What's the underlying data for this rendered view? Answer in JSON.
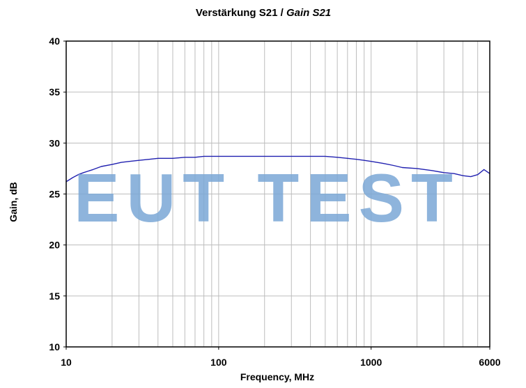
{
  "chart_data": {
    "type": "line",
    "title_part1": "Verstärkung S21 / ",
    "title_part2": "Gain S21",
    "xlabel": "Frequency, MHz",
    "ylabel": "Gain, dB",
    "x_scale": "log",
    "xlim": [
      10,
      6000
    ],
    "ylim": [
      10,
      40
    ],
    "x_ticks": [
      {
        "value": 10,
        "label": "10"
      },
      {
        "value": 100,
        "label": "100"
      },
      {
        "value": 1000,
        "label": "1000"
      },
      {
        "value": 6000,
        "label": "6000"
      }
    ],
    "y_ticks": [
      {
        "value": 10,
        "label": "10"
      },
      {
        "value": 15,
        "label": "15"
      },
      {
        "value": 20,
        "label": "20"
      },
      {
        "value": 25,
        "label": "25"
      },
      {
        "value": 30,
        "label": "30"
      },
      {
        "value": 35,
        "label": "35"
      },
      {
        "value": 40,
        "label": "40"
      }
    ],
    "grid": true,
    "series": [
      {
        "color": "#2020b0",
        "x": [
          10,
          11,
          12,
          13,
          15,
          17,
          20,
          23,
          26,
          30,
          35,
          40,
          50,
          60,
          70,
          80,
          90,
          100,
          120,
          150,
          180,
          200,
          230,
          260,
          300,
          350,
          400,
          500,
          600,
          700,
          800,
          900,
          1000,
          1200,
          1400,
          1600,
          2000,
          2500,
          3000,
          3500,
          4000,
          4500,
          5000,
          5500,
          6000
        ],
        "y": [
          26.2,
          26.6,
          26.9,
          27.1,
          27.4,
          27.7,
          27.9,
          28.1,
          28.2,
          28.3,
          28.4,
          28.5,
          28.5,
          28.6,
          28.6,
          28.7,
          28.7,
          28.7,
          28.7,
          28.7,
          28.7,
          28.7,
          28.7,
          28.7,
          28.7,
          28.7,
          28.7,
          28.7,
          28.6,
          28.5,
          28.4,
          28.3,
          28.2,
          28.0,
          27.8,
          27.6,
          27.5,
          27.3,
          27.1,
          27.0,
          26.8,
          26.7,
          26.9,
          27.4,
          27.0
        ]
      }
    ]
  },
  "watermark": {
    "text": "EUT TEST",
    "color": "#7ba8d6"
  }
}
